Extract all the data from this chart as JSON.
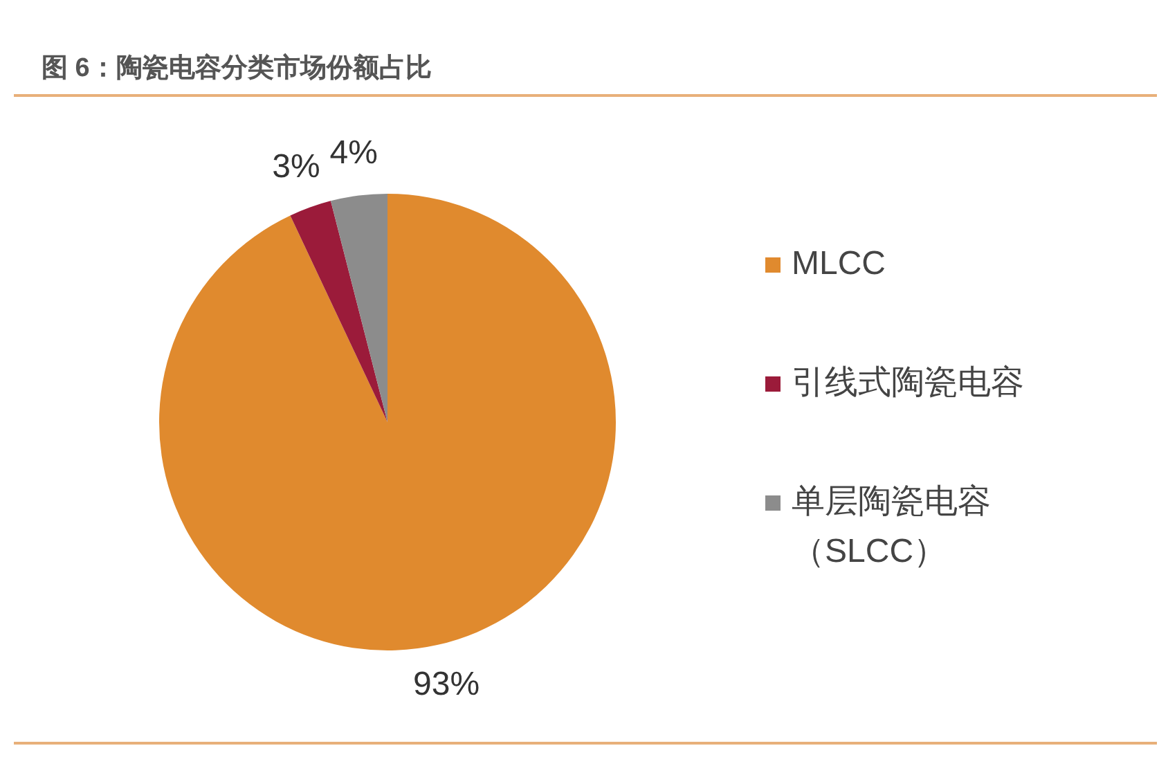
{
  "chart_data": {
    "type": "pie",
    "title": "图 6：陶瓷电容分类市场份额占比",
    "categories": [
      "MLCC",
      "引线式陶瓷电容",
      "单层陶瓷电容（SLCC）"
    ],
    "values": [
      93,
      3,
      4
    ],
    "colors": [
      "#e08a2e",
      "#9b1b3a",
      "#8c8c8c"
    ],
    "value_labels": [
      "93%",
      "3%",
      "4%"
    ],
    "legend": "right"
  }
}
